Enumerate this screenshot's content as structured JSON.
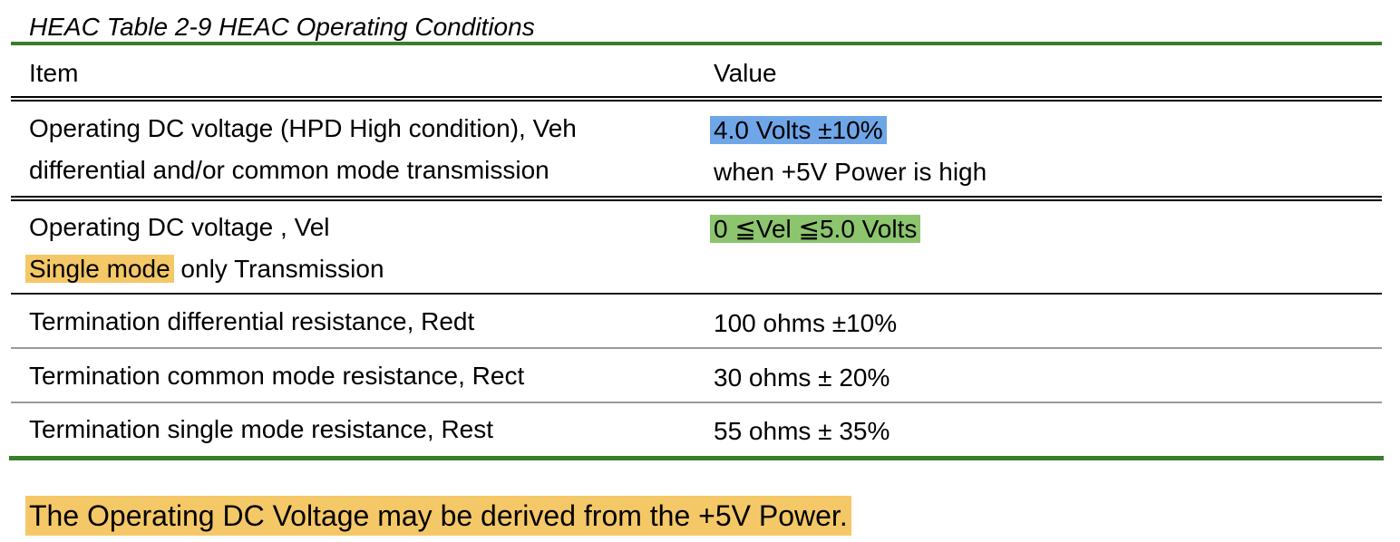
{
  "caption": "HEAC Table 2-9 HEAC Operating Conditions",
  "table": {
    "headers": {
      "item": "Item",
      "value": "Value"
    },
    "rows": [
      {
        "item_line1": "Operating DC voltage (HPD High condition), Veh",
        "item_line2": "differential and/or common mode transmission",
        "value_line1": "4.0 Volts ±10%",
        "value_line2": "when +5V Power is high"
      },
      {
        "item_line1": "Operating DC voltage , Vel",
        "item_line2_highlight": "Single mode",
        "item_line2_rest": " only Transmission",
        "value_line1": "0 ≦Vel ≦5.0 Volts"
      },
      {
        "item": "Termination differential resistance, Redt",
        "value": "100 ohms ±10%"
      },
      {
        "item": "Termination common mode resistance, Rect",
        "value": "30 ohms ± 20%"
      },
      {
        "item": "Termination single mode resistance, Rest",
        "value": "55 ohms ± 35%"
      }
    ]
  },
  "note": "The Operating DC Voltage may be derived from the +5V Power.",
  "colors": {
    "rule_green": "#3a7d2a",
    "highlight_blue": "#6fa6e8",
    "highlight_green": "#8cc56e",
    "highlight_yellow": "#f5c867"
  }
}
